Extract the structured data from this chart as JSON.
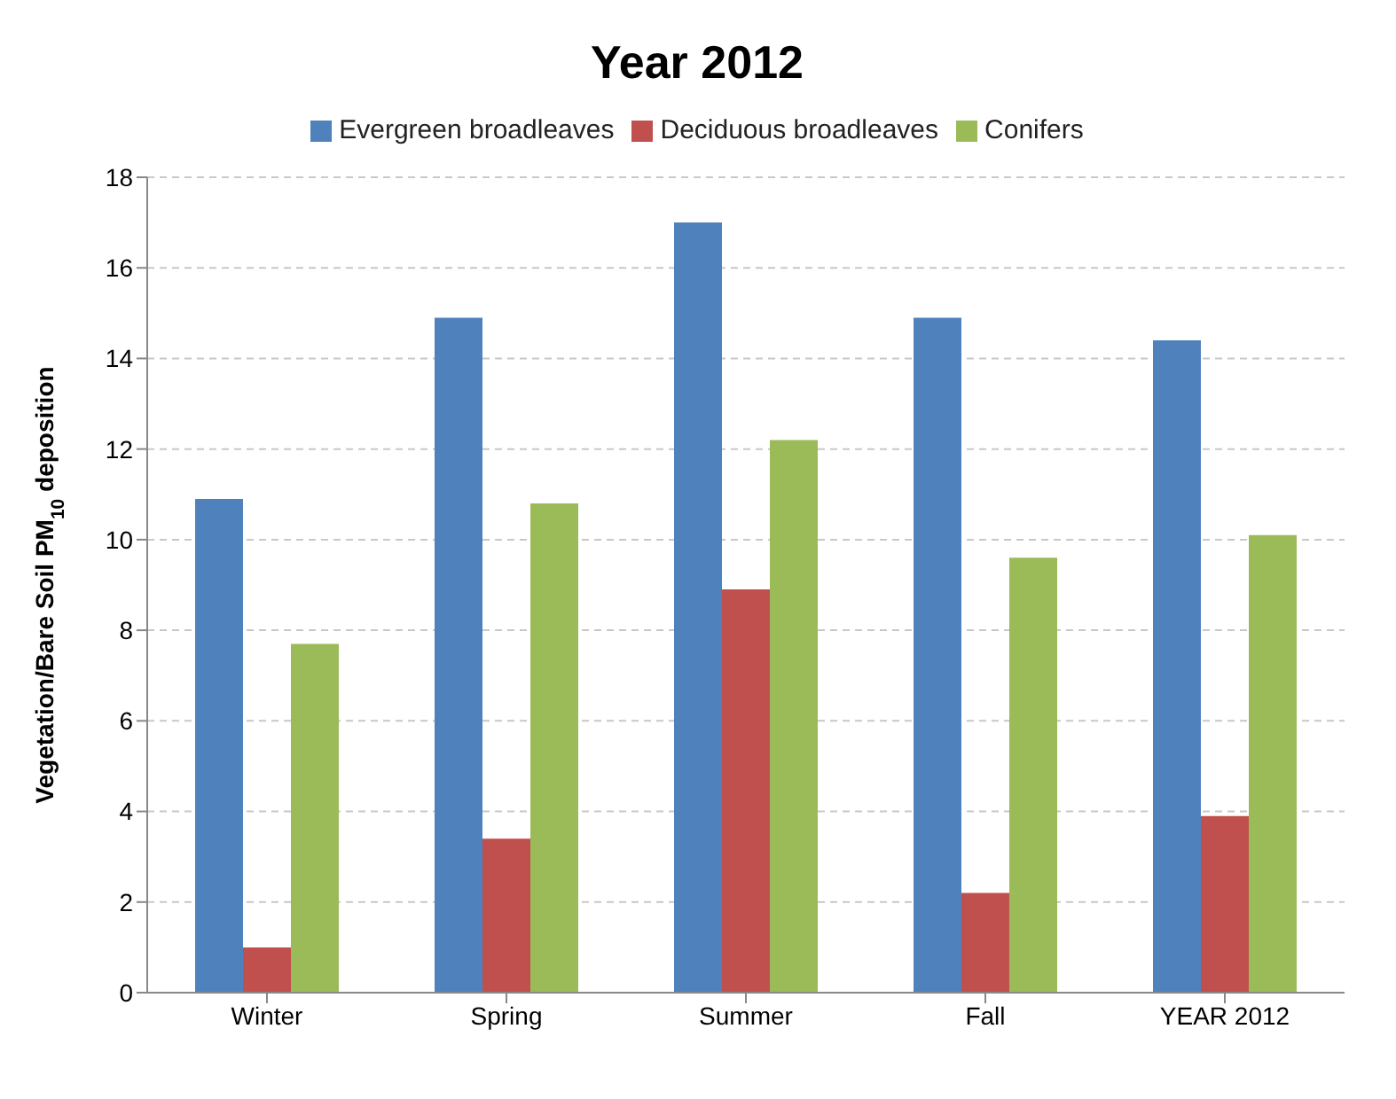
{
  "chart_data": {
    "type": "bar",
    "title": "Year 2012",
    "ylabel": "Vegetation/Bare Soil PM$_{10}$ deposition",
    "categories": [
      "Winter",
      "Spring",
      "Summer",
      "Fall",
      "YEAR 2012"
    ],
    "series": [
      {
        "name": "Evergreen  broadleaves",
        "color": "#4f81bd",
        "values": [
          10.9,
          14.9,
          17.0,
          14.9,
          14.4
        ]
      },
      {
        "name": "Deciduous broadleaves",
        "color": "#c0504d",
        "values": [
          1.0,
          3.4,
          8.9,
          2.2,
          3.9
        ]
      },
      {
        "name": "Conifers",
        "color": "#9bbb59",
        "values": [
          7.7,
          10.8,
          12.2,
          9.6,
          10.1
        ]
      }
    ],
    "ylim": [
      0,
      18
    ],
    "yticks": [
      0,
      2,
      4,
      6,
      8,
      10,
      12,
      14,
      16,
      18
    ],
    "grid": "y",
    "legend": "top"
  }
}
